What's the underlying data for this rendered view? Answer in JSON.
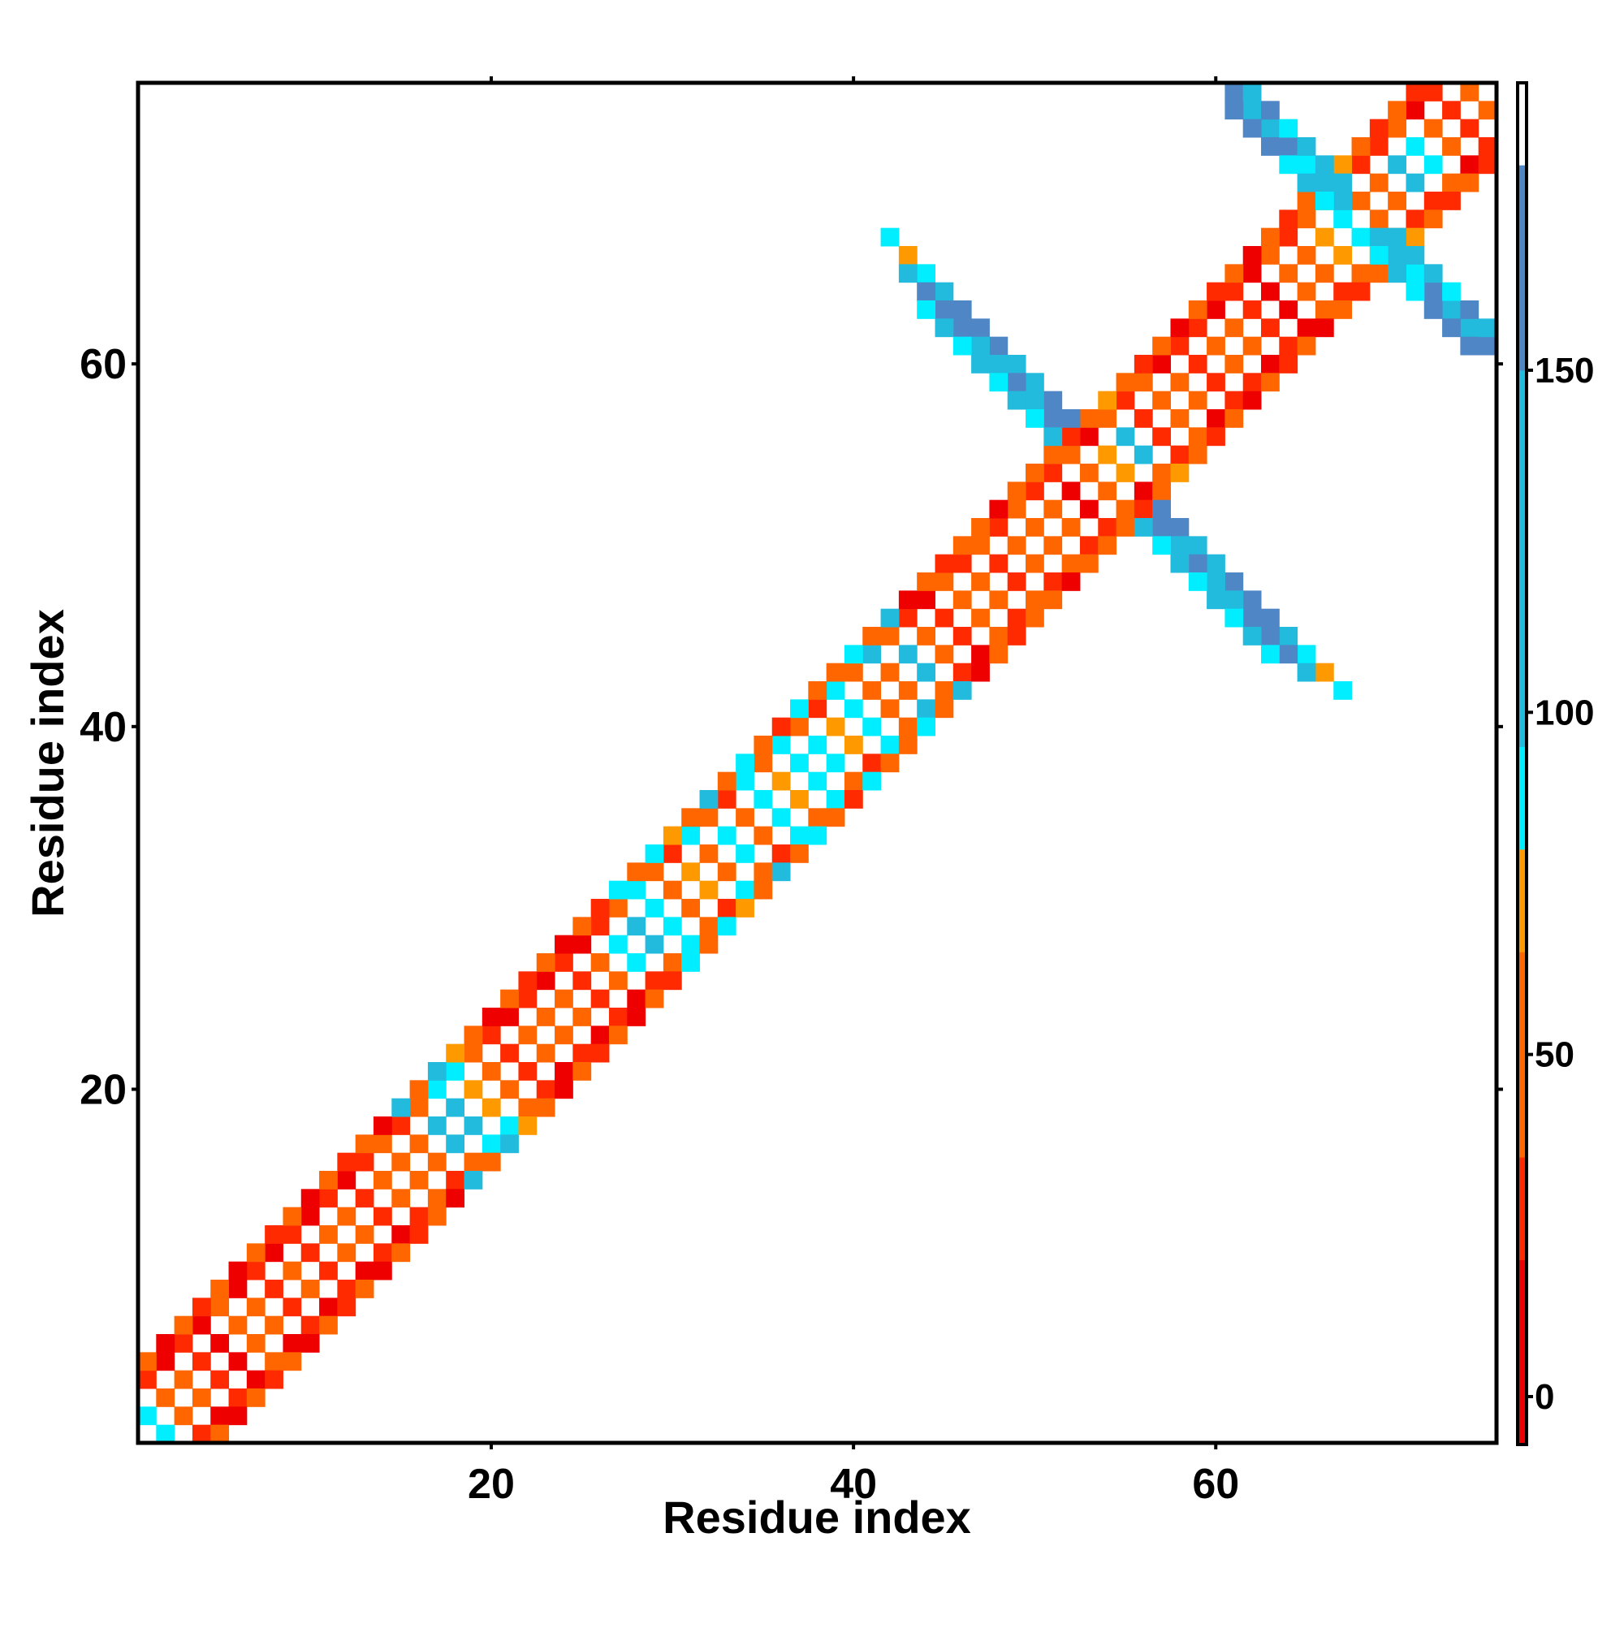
{
  "chart_data": {
    "type": "heatmap",
    "xlabel": "Residue index",
    "ylabel": "Residue index",
    "xlim": [
      0.5,
      75.5
    ],
    "ylim": [
      0.5,
      75.5
    ],
    "xticks": [
      20,
      40,
      60
    ],
    "yticks": [
      20,
      40,
      60
    ],
    "symmetric": true,
    "zlim": [
      -7,
      192
    ],
    "zticks": [
      0,
      50,
      100,
      150
    ],
    "colorscale": [
      {
        "min": -7,
        "max": 20,
        "color": "#ee0000"
      },
      {
        "min": 20,
        "max": 35,
        "color": "#ff2a00"
      },
      {
        "min": 35,
        "max": 65,
        "color": "#ff6600"
      },
      {
        "min": 65,
        "max": 80,
        "color": "#ff9900"
      },
      {
        "min": 80,
        "max": 95,
        "color": "#00eeff"
      },
      {
        "min": 95,
        "max": 150,
        "color": "#22bbdd"
      },
      {
        "min": 150,
        "max": 180,
        "color": "#4f86c6"
      },
      {
        "min": 180,
        "max": 192,
        "color": "#ffffff"
      }
    ],
    "segments": [
      {
        "x_start": 1,
        "y_start": 2,
        "x_step": 1,
        "y_step": 1,
        "values": [
          90,
          45,
          45,
          30,
          10,
          45,
          45,
          30,
          45,
          30,
          45,
          45,
          30,
          45,
          45,
          45,
          120,
          110,
          70,
          45,
          30,
          45,
          45,
          45,
          30,
          45,
          90,
          110,
          90,
          45,
          70,
          45,
          90,
          45,
          90,
          70,
          90,
          90,
          70,
          90,
          45,
          45,
          110,
          45,
          30,
          45,
          45,
          30,
          45,
          45,
          45,
          10,
          45,
          70,
          110,
          30,
          45,
          45,
          30,
          45,
          45,
          30,
          10,
          45,
          45,
          70,
          90,
          45,
          45,
          110,
          90,
          45,
          30,
          45
        ]
      },
      {
        "x_start": 1,
        "y_start": 4,
        "x_step": 1,
        "y_step": 1,
        "values": [
          30,
          10,
          30,
          10,
          45,
          10,
          30,
          10,
          30,
          10,
          30,
          10,
          30,
          45,
          30,
          45,
          90,
          90,
          45,
          30,
          10,
          30,
          10,
          30,
          10,
          30,
          45,
          90,
          45,
          30,
          90,
          45,
          30,
          90,
          45,
          90,
          45,
          30,
          90,
          45,
          110,
          45,
          30,
          10,
          45,
          30,
          45,
          30,
          45,
          30,
          30,
          45,
          10,
          45,
          30,
          45,
          10,
          30,
          30,
          10,
          30,
          10,
          45,
          30,
          45,
          70,
          45,
          30,
          30,
          45,
          10,
          30
        ]
      },
      {
        "x_start": 1,
        "y_start": 5,
        "x_step": 1,
        "y_step": 1,
        "values": [
          45,
          10,
          45,
          30,
          45,
          10,
          45,
          30,
          45,
          10,
          45,
          30,
          45,
          10,
          110,
          45,
          110,
          70,
          45,
          10,
          45,
          30,
          45,
          10,
          45,
          30,
          90,
          45,
          90,
          70,
          45,
          110,
          45,
          90,
          45,
          30,
          90,
          45,
          45,
          90,
          45,
          110,
          10,
          45,
          30,
          45,
          45,
          10,
          45,
          45,
          45,
          30,
          45,
          70,
          45,
          30,
          45,
          10,
          45,
          30,
          45,
          10,
          45,
          30,
          45,
          30,
          70,
          45,
          30,
          45,
          30
        ]
      },
      {
        "x_start": 42,
        "y_start": 67,
        "x_step": 1,
        "y_step": -1,
        "values": [
          90,
          70,
          90,
          110,
          165,
          165,
          165,
          110,
          110,
          165,
          165
        ]
      },
      {
        "x_start": 43,
        "y_start": 65,
        "x_step": 1,
        "y_step": -1,
        "values": [
          110,
          165,
          165,
          165,
          120,
          110,
          165,
          120,
          165
        ]
      },
      {
        "x_start": 44,
        "y_start": 63,
        "x_step": 1,
        "y_step": -1,
        "values": [
          90,
          110,
          90,
          110,
          90,
          120,
          90,
          110
        ]
      },
      {
        "x_start": 61,
        "y_start": 75,
        "x_step": 1,
        "y_step": -1,
        "values": [
          165,
          120,
          120,
          165,
          90,
          120,
          120
        ]
      },
      {
        "x_start": 61,
        "y_start": 74,
        "x_step": 1,
        "y_step": -1,
        "values": [
          165,
          165,
          165,
          90,
          120,
          90
        ]
      },
      {
        "x_start": 62,
        "y_start": 75,
        "x_step": 1,
        "y_step": -1,
        "values": [
          120,
          165,
          90,
          120,
          120,
          120
        ]
      }
    ]
  }
}
